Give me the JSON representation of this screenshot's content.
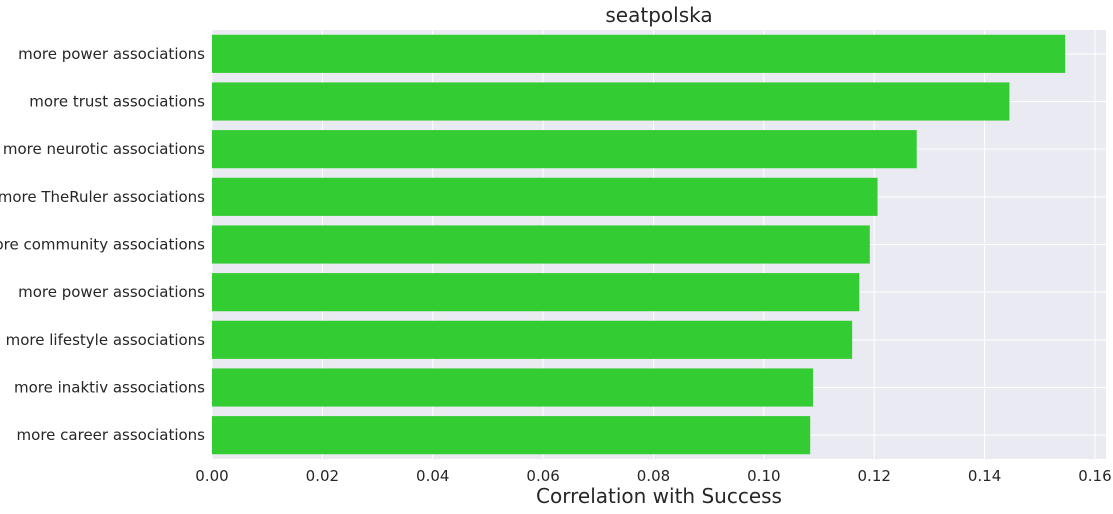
{
  "chart_data": {
    "type": "bar",
    "orientation": "horizontal",
    "title": "seatpolska",
    "xlabel": "Correlation with Success",
    "ylabel": "",
    "categories": [
      "more power associations",
      "more trust associations",
      "more neurotic associations",
      "more TheRuler associations",
      "more community associations",
      "more power associations",
      "more lifestyle associations",
      "more inaktiv associations",
      "more career associations"
    ],
    "values": [
      0.1546,
      0.1445,
      0.1277,
      0.1206,
      0.1192,
      0.1173,
      0.116,
      0.1089,
      0.1084
    ],
    "xlim": [
      0.0,
      0.162
    ],
    "xticks": [
      "0.00",
      "0.02",
      "0.04",
      "0.06",
      "0.08",
      "0.10",
      "0.12",
      "0.14",
      "0.16"
    ],
    "grid": true,
    "colors": {
      "bar": "#33cc33",
      "plot_background": "#eaeaf2",
      "grid": "#ffffff",
      "text": "#262626"
    }
  }
}
